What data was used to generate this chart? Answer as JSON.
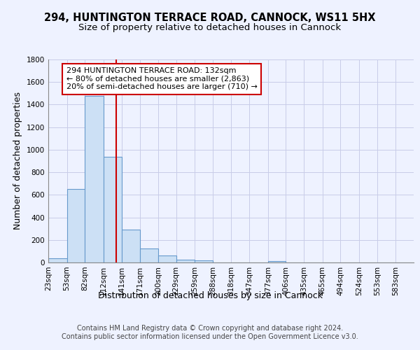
{
  "title1": "294, HUNTINGTON TERRACE ROAD, CANNOCK, WS11 5HX",
  "title2": "Size of property relative to detached houses in Cannock",
  "xlabel": "Distribution of detached houses by size in Cannock",
  "ylabel": "Number of detached properties",
  "bar_edges": [
    23,
    53,
    82,
    112,
    141,
    171,
    200,
    229,
    259,
    288,
    318,
    347,
    377,
    406,
    435,
    465,
    494,
    524,
    553,
    583,
    612
  ],
  "bar_heights": [
    38,
    650,
    1475,
    940,
    290,
    125,
    63,
    22,
    18,
    0,
    0,
    0,
    13,
    0,
    0,
    0,
    0,
    0,
    0,
    0
  ],
  "bar_facecolor": "#cce0f5",
  "bar_edgecolor": "#6699cc",
  "red_line_x": 132,
  "annotation_text": "294 HUNTINGTON TERRACE ROAD: 132sqm\n← 80% of detached houses are smaller (2,863)\n20% of semi-detached houses are larger (710) →",
  "annotation_box_edgecolor": "#cc0000",
  "footer_text": "Contains HM Land Registry data © Crown copyright and database right 2024.\nContains public sector information licensed under the Open Government Licence v3.0.",
  "ylim": [
    0,
    1800
  ],
  "yticks": [
    0,
    200,
    400,
    600,
    800,
    1000,
    1200,
    1400,
    1600,
    1800
  ],
  "background_color": "#eef2ff",
  "grid_color": "#c8cce8",
  "title1_fontsize": 10.5,
  "title2_fontsize": 9.5,
  "axis_label_fontsize": 9,
  "tick_fontsize": 7.5,
  "footer_fontsize": 7,
  "annot_fontsize": 8
}
